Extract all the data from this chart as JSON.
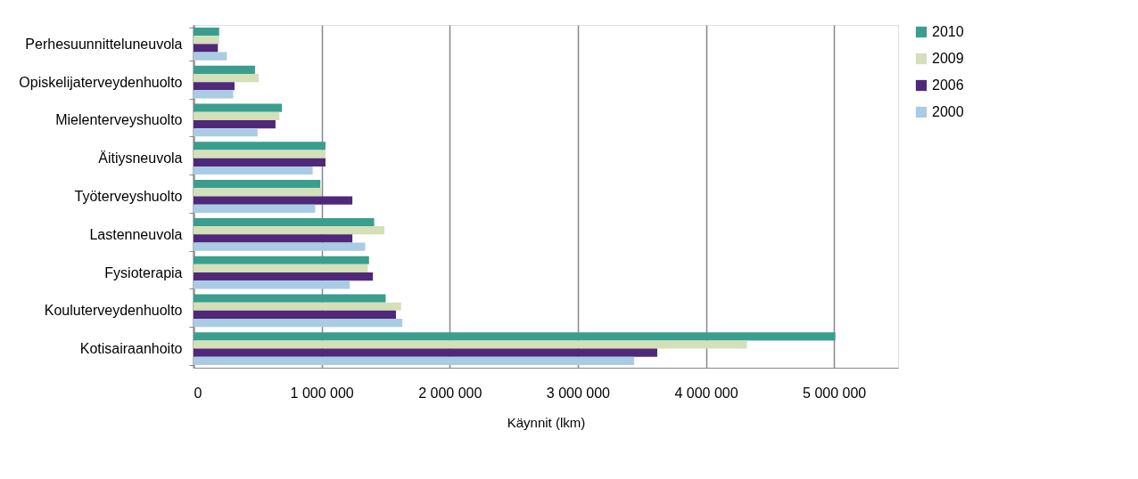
{
  "chart_data": {
    "type": "bar",
    "orientation": "horizontal",
    "xlabel": "Käynnit (lkm)",
    "categories": [
      "Perhesuunnitteluneuvola",
      "Opiskelijaterveydenhuolto",
      "Mielenterveyshuolto",
      "Äitiysneuvola",
      "Työterveyshuolto",
      "Lastenneuvola",
      "Fysioterapia",
      "Kouluterveydenhuolto",
      "Kotisairaanhoito"
    ],
    "series": [
      {
        "name": "2010",
        "color": "#3a9e8f",
        "values": [
          200000,
          480000,
          690000,
          1030000,
          990000,
          1410000,
          1370000,
          1500000,
          5010000
        ]
      },
      {
        "name": "2009",
        "color": "#d3e0b8",
        "values": [
          200000,
          510000,
          670000,
          1030000,
          1000000,
          1490000,
          1360000,
          1620000,
          4320000
        ]
      },
      {
        "name": "2006",
        "color": "#4f287a",
        "values": [
          190000,
          320000,
          640000,
          1030000,
          1240000,
          1240000,
          1400000,
          1580000,
          3620000
        ]
      },
      {
        "name": "2000",
        "color": "#a9cce4",
        "values": [
          260000,
          310000,
          500000,
          930000,
          950000,
          1340000,
          1220000,
          1630000,
          3440000
        ]
      }
    ],
    "xlim": [
      0,
      5500000
    ],
    "xticks": [
      0,
      {
        "value": 1000000,
        "label": "1 000 000"
      },
      {
        "value": 2000000,
        "label": "2 000 000"
      },
      {
        "value": 3000000,
        "label": "3 000 000"
      },
      {
        "value": 4000000,
        "label": "4 000 000"
      },
      {
        "value": 5000000,
        "label": "5 000 000"
      }
    ],
    "grid": "x",
    "legend": "right"
  }
}
